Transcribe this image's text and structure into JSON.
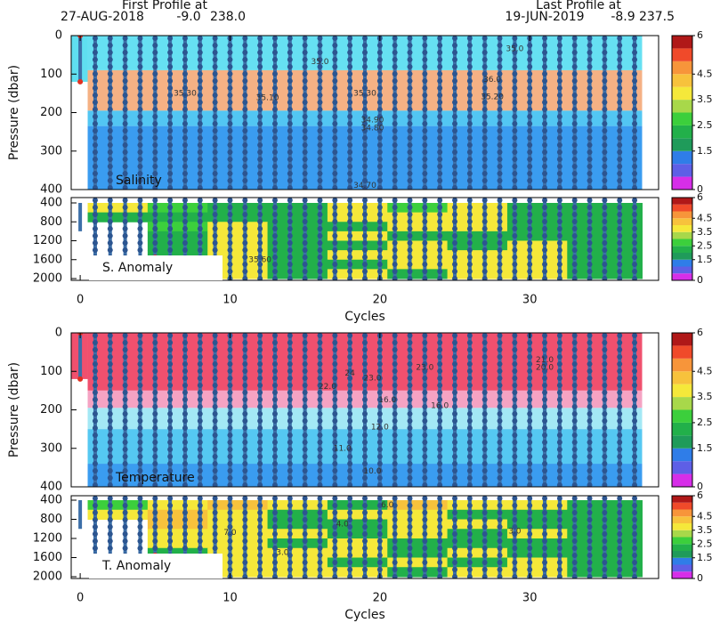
{
  "header": {
    "first": {
      "title": "First Profile at",
      "date": "27-AUG-2018",
      "lat": "-9.0",
      "lon": "238.0"
    },
    "last": {
      "title": "Last Profile at",
      "date": "19-JUN-2019",
      "lat": "-8.9",
      "lon": "237.5"
    }
  },
  "chart_data": [
    {
      "type": "layers",
      "label": "Salinity",
      "ylabel": "Pressure (dbar)",
      "xlim": [
        -0.6,
        38.6
      ],
      "ylim": [
        0,
        400
      ],
      "yticks": [
        0,
        100,
        200,
        300,
        400
      ],
      "layers": [
        {
          "x": [
            -0.6,
            0.5
          ],
          "y": [
            0,
            120
          ],
          "color": "#5fdff0"
        },
        {
          "x": [
            0.5,
            37.5
          ],
          "y": [
            0,
            90
          ],
          "color": "#66e0f2"
        },
        {
          "x": [
            0.5,
            37.5
          ],
          "y": [
            90,
            195
          ],
          "color": "#f5b184"
        },
        {
          "x": [
            0.5,
            37.5
          ],
          "y": [
            195,
            235
          ],
          "color": "#52c6f3"
        },
        {
          "x": [
            0.5,
            37.5
          ],
          "y": [
            235,
            400
          ],
          "color": "#3a9cf0"
        }
      ],
      "profiles": [
        1,
        2,
        3,
        4,
        5,
        6,
        7,
        8,
        9,
        10,
        11,
        12,
        13,
        14,
        15,
        16,
        17,
        18,
        19,
        20,
        21,
        22,
        23,
        24,
        25,
        26,
        27,
        28,
        29,
        30,
        31,
        32,
        33,
        34,
        35,
        36,
        37
      ],
      "first_profile": {
        "x": 0,
        "y": [
          0,
          120
        ]
      },
      "markers": [
        {
          "x": 0,
          "y": 0
        },
        {
          "x": 0,
          "y": 120
        }
      ],
      "contour_labels": [
        {
          "x": 16,
          "y": 68,
          "label": "35.0"
        },
        {
          "x": 29,
          "y": 35,
          "label": "35.0"
        },
        {
          "x": 27.5,
          "y": 115,
          "label": "36.0"
        },
        {
          "x": 7,
          "y": 150,
          "label": "35.30"
        },
        {
          "x": 12.5,
          "y": 162,
          "label": "35.10"
        },
        {
          "x": 19,
          "y": 150,
          "label": "35.30"
        },
        {
          "x": 27.5,
          "y": 160,
          "label": "35.20"
        },
        {
          "x": 19.5,
          "y": 220,
          "label": "34.90"
        },
        {
          "x": 19.5,
          "y": 240,
          "label": "34.80"
        },
        {
          "x": 19,
          "y": 390,
          "label": "34.70"
        }
      ],
      "colorbar": {
        "ylim": [
          0,
          6
        ],
        "yticks": [
          0,
          1.5,
          2.5,
          3.5,
          4.5,
          6
        ],
        "levels": [
          0,
          0.5,
          1,
          1.5,
          2,
          2.5,
          3,
          3.5,
          4,
          4.5,
          5,
          5.5,
          6
        ],
        "colors": [
          "#d62ee8",
          "#5e5fe6",
          "#2f7de8",
          "#1f9b5a",
          "#22b04a",
          "#3ccf3c",
          "#a8d84a",
          "#f5e83a",
          "#f7c23c",
          "#f7953a",
          "#f04a2a",
          "#b01818"
        ]
      }
    },
    {
      "type": "grid",
      "label": "S. Anomaly",
      "xlabel": "Cycles",
      "xlim": [
        -0.6,
        38.6
      ],
      "xticks": [
        0,
        10,
        20,
        30
      ],
      "ylim": [
        400,
        2000
      ],
      "yticks": [
        400,
        800,
        1200,
        1600,
        2000
      ],
      "x_bins": [
        0.5,
        4.5,
        8.5,
        12.5,
        16.5,
        20.5,
        24.5,
        28.5,
        32.5,
        37.5
      ],
      "y_bins": [
        400,
        600,
        800,
        1000,
        1200,
        1400,
        1600,
        1800,
        2000
      ],
      "values": [
        [
          3.7,
          2.7,
          2.2,
          2.2,
          3.7,
          2.7,
          3.7,
          2.2,
          2.2
        ],
        [
          2.2,
          2.2,
          2.2,
          2.2,
          3.7,
          3.7,
          3.7,
          2.2,
          2.2
        ],
        [
          null,
          2.7,
          3.7,
          2.2,
          2.2,
          3.7,
          3.7,
          2.2,
          2.2
        ],
        [
          null,
          2.2,
          3.7,
          2.2,
          3.7,
          2.2,
          2.2,
          2.2,
          2.2
        ],
        [
          null,
          2.2,
          3.7,
          2.2,
          2.2,
          3.7,
          2.2,
          3.7,
          2.2
        ],
        [
          null,
          2.2,
          3.7,
          2.2,
          3.7,
          3.7,
          3.7,
          3.7,
          2.2
        ],
        [
          null,
          null,
          3.7,
          2.2,
          2.2,
          3.7,
          3.7,
          3.7,
          2.2
        ],
        [
          null,
          null,
          3.7,
          2.2,
          3.7,
          2.2,
          3.7,
          3.7,
          2.2
        ]
      ],
      "profiles": [
        1,
        2,
        3,
        4,
        5,
        6,
        7,
        8,
        9,
        10,
        11,
        12,
        13,
        14,
        15,
        16,
        17,
        18,
        19,
        20,
        21,
        22,
        23,
        24,
        25,
        26,
        27,
        28,
        29,
        30,
        31,
        32,
        33,
        34,
        35,
        36,
        37
      ],
      "first_profile": {
        "x": 0,
        "y": [
          400,
          1000
        ]
      },
      "markers": [
        {
          "x": 5,
          "y": 1550
        }
      ],
      "contour_labels": [
        {
          "x": 12,
          "y": 1600,
          "label": "35.60"
        }
      ],
      "colorbar": {
        "ylim": [
          0,
          6
        ],
        "yticks": [
          0,
          1.5,
          2.5,
          3.5,
          4.5,
          6
        ],
        "levels": [
          0,
          0.5,
          1,
          1.5,
          2,
          2.5,
          3,
          3.5,
          4,
          4.5,
          5,
          5.5,
          6
        ],
        "colors": [
          "#d62ee8",
          "#5e5fe6",
          "#2f7de8",
          "#1f9b5a",
          "#22b04a",
          "#3ccf3c",
          "#a8d84a",
          "#f5e83a",
          "#f7c23c",
          "#f7953a",
          "#f04a2a",
          "#b01818"
        ]
      }
    },
    {
      "type": "layers",
      "label": "Temperature",
      "ylabel": "Pressure (dbar)",
      "xlim": [
        -0.6,
        38.6
      ],
      "ylim": [
        0,
        400
      ],
      "yticks": [
        0,
        100,
        200,
        300,
        400
      ],
      "layers": [
        {
          "x": [
            -0.6,
            0.5
          ],
          "y": [
            0,
            120
          ],
          "color": "#f0506e"
        },
        {
          "x": [
            0.5,
            37.5
          ],
          "y": [
            0,
            150
          ],
          "color": "#f0506e"
        },
        {
          "x": [
            0.5,
            37.5
          ],
          "y": [
            150,
            195
          ],
          "color": "#f5a3c3"
        },
        {
          "x": [
            0.5,
            37.5
          ],
          "y": [
            195,
            250
          ],
          "color": "#a3e8f5"
        },
        {
          "x": [
            0.5,
            37.5
          ],
          "y": [
            250,
            340
          ],
          "color": "#55c8f2"
        },
        {
          "x": [
            0.5,
            37.5
          ],
          "y": [
            340,
            400
          ],
          "color": "#3a9cf0"
        }
      ],
      "profiles": [
        1,
        2,
        3,
        4,
        5,
        6,
        7,
        8,
        9,
        10,
        11,
        12,
        13,
        14,
        15,
        16,
        17,
        18,
        19,
        20,
        21,
        22,
        23,
        24,
        25,
        26,
        27,
        28,
        29,
        30,
        31,
        32,
        33,
        34,
        35,
        36,
        37
      ],
      "first_profile": {
        "x": 0,
        "y": [
          0,
          120
        ]
      },
      "markers": [
        {
          "x": 0,
          "y": 0
        },
        {
          "x": 0,
          "y": 120
        }
      ],
      "contour_labels": [
        {
          "x": 18,
          "y": 105,
          "label": "24"
        },
        {
          "x": 19.5,
          "y": 118,
          "label": "23.0"
        },
        {
          "x": 23,
          "y": 90,
          "label": "23.0"
        },
        {
          "x": 31,
          "y": 70,
          "label": "21.0"
        },
        {
          "x": 31,
          "y": 90,
          "label": "20.0"
        },
        {
          "x": 16.5,
          "y": 140,
          "label": "22.0"
        },
        {
          "x": 20.5,
          "y": 175,
          "label": "16.0"
        },
        {
          "x": 24,
          "y": 190,
          "label": "16.0"
        },
        {
          "x": 20,
          "y": 245,
          "label": "12.0"
        },
        {
          "x": 17.5,
          "y": 300,
          "label": "11.0"
        },
        {
          "x": 19.5,
          "y": 360,
          "label": "10.0"
        }
      ],
      "colorbar": {
        "ylim": [
          0,
          6
        ],
        "yticks": [
          0,
          1.5,
          2.5,
          3.5,
          4.5,
          6
        ],
        "levels": [
          0,
          0.5,
          1,
          1.5,
          2,
          2.5,
          3,
          3.5,
          4,
          4.5,
          5,
          5.5,
          6
        ],
        "colors": [
          "#d62ee8",
          "#5e5fe6",
          "#2f7de8",
          "#1f9b5a",
          "#22b04a",
          "#3ccf3c",
          "#a8d84a",
          "#f5e83a",
          "#f7c23c",
          "#f7953a",
          "#f04a2a",
          "#b01818"
        ]
      }
    },
    {
      "type": "grid",
      "label": "T. Anomaly",
      "xlabel": "Cycles",
      "xlim": [
        -0.6,
        38.6
      ],
      "xticks": [
        0,
        10,
        20,
        30
      ],
      "ylim": [
        400,
        2000
      ],
      "yticks": [
        400,
        800,
        1200,
        1600,
        2000
      ],
      "x_bins": [
        0.5,
        4.5,
        8.5,
        12.5,
        16.5,
        20.5,
        24.5,
        28.5,
        32.5,
        37.5
      ],
      "y_bins": [
        400,
        600,
        800,
        1000,
        1200,
        1400,
        1600,
        1800,
        2000
      ],
      "values": [
        [
          2.7,
          3.7,
          4.2,
          3.7,
          2.2,
          4.2,
          3.7,
          3.7,
          2.2
        ],
        [
          3.7,
          4.2,
          3.7,
          2.2,
          3.7,
          3.7,
          2.2,
          2.2,
          2.2
        ],
        [
          null,
          4.2,
          3.7,
          2.2,
          2.2,
          3.7,
          3.7,
          2.2,
          2.2
        ],
        [
          null,
          3.7,
          3.7,
          3.7,
          2.2,
          3.7,
          2.2,
          3.7,
          2.2
        ],
        [
          null,
          3.7,
          3.7,
          2.2,
          3.7,
          2.2,
          2.2,
          2.2,
          2.2
        ],
        [
          null,
          2.2,
          3.7,
          3.7,
          3.7,
          2.2,
          3.7,
          2.2,
          2.2
        ],
        [
          null,
          null,
          3.7,
          3.7,
          2.2,
          3.7,
          2.2,
          3.7,
          2.2
        ],
        [
          null,
          null,
          3.7,
          3.7,
          3.7,
          2.2,
          3.7,
          3.7,
          2.2
        ]
      ],
      "profiles": [
        1,
        2,
        3,
        4,
        5,
        6,
        7,
        8,
        9,
        10,
        11,
        12,
        13,
        14,
        15,
        16,
        17,
        18,
        19,
        20,
        21,
        22,
        23,
        24,
        25,
        26,
        27,
        28,
        29,
        30,
        31,
        32,
        33,
        34,
        35,
        36,
        37
      ],
      "first_profile": {
        "x": 0,
        "y": [
          400,
          1000
        ]
      },
      "markers": [
        {
          "x": 5,
          "y": 1550
        }
      ],
      "contour_labels": [
        {
          "x": 10,
          "y": 1080,
          "label": "7.0"
        },
        {
          "x": 20.5,
          "y": 500,
          "label": "6.0"
        },
        {
          "x": 17.5,
          "y": 900,
          "label": "4.0"
        },
        {
          "x": 29,
          "y": 1050,
          "label": "3.0"
        },
        {
          "x": 13.5,
          "y": 1500,
          "label": "3.0"
        }
      ],
      "colorbar": {
        "ylim": [
          0,
          6
        ],
        "yticks": [
          0,
          1.5,
          2.5,
          3.5,
          4.5,
          6
        ],
        "levels": [
          0,
          0.5,
          1,
          1.5,
          2,
          2.5,
          3,
          3.5,
          4,
          4.5,
          5,
          5.5,
          6
        ],
        "colors": [
          "#d62ee8",
          "#5e5fe6",
          "#2f7de8",
          "#1f9b5a",
          "#22b04a",
          "#3ccf3c",
          "#a8d84a",
          "#f5e83a",
          "#f7c23c",
          "#f7953a",
          "#f04a2a",
          "#b01818"
        ]
      }
    }
  ]
}
